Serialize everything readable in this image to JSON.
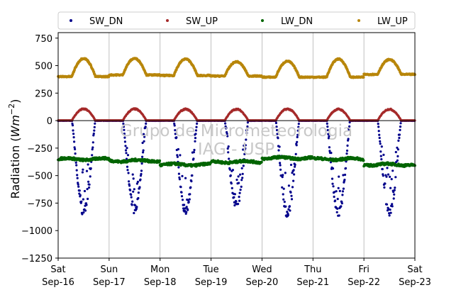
{
  "chart_data": {
    "type": "scatter",
    "title": "",
    "xlabel": "",
    "ylabel": "Radiation (Wm⁻²)",
    "ylabel_parts": {
      "prefix": "Radiation (",
      "unit": "Wm",
      "exp": "−2",
      "suffix": ")"
    },
    "ylim": [
      -1250,
      800
    ],
    "xlim": [
      0,
      7
    ],
    "yticks": [
      -1250,
      -1000,
      -750,
      -500,
      -250,
      0,
      250,
      500,
      750
    ],
    "ytick_labels": [
      "−1250",
      "−1000",
      "−750",
      "−500",
      "−250",
      "0",
      "250",
      "500",
      "750"
    ],
    "x_ticks": [
      {
        "day": "Sat",
        "date": "Sep-16"
      },
      {
        "day": "Sun",
        "date": "Sep-17"
      },
      {
        "day": "Mon",
        "date": "Sep-18"
      },
      {
        "day": "Tue",
        "date": "Sep-19"
      },
      {
        "day": "Wed",
        "date": "Sep-20"
      },
      {
        "day": "Thu",
        "date": "Sep-21"
      },
      {
        "day": "Fri",
        "date": "Sep-22"
      },
      {
        "day": "Sat",
        "date": "Sep-23"
      }
    ],
    "grid": "vertical",
    "zero_line": true,
    "legend_placement": "top",
    "series": [
      {
        "name": "SW_DN",
        "color": "#00008b",
        "daily_peak": [
          -880,
          -850,
          -860,
          -810,
          -890,
          -880,
          -885
        ]
      },
      {
        "name": "SW_UP",
        "color": "#a52a2a",
        "daily_peak": [
          110,
          110,
          108,
          108,
          110,
          108,
          108
        ]
      },
      {
        "name": "LW_DN",
        "color": "#006400",
        "daily_min": [
          -350,
          -365,
          -400,
          -375,
          -340,
          -350,
          -400
        ]
      },
      {
        "name": "LW_UP",
        "color": "#b8860b",
        "daily_max": [
          565,
          565,
          560,
          535,
          540,
          560,
          555
        ],
        "daily_base": [
          400,
          415,
          410,
          405,
          395,
          395,
          420
        ]
      }
    ],
    "watermark_lines": [
      "Grupo de Micrometeorologia",
      "IAG - USP"
    ]
  }
}
